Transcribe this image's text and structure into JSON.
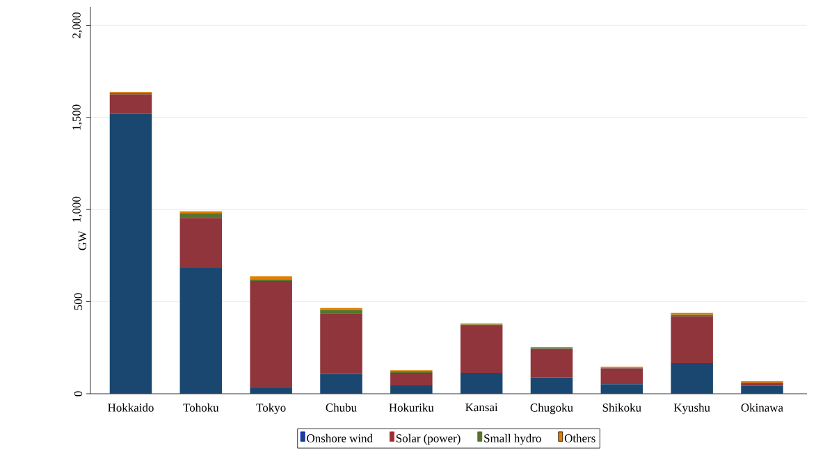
{
  "chart_data": {
    "type": "bar",
    "stacked": true,
    "ylabel": "GW",
    "categories": [
      "Hokkaido",
      "Tohoku",
      "Tokyo",
      "Chubu",
      "Hokuriku",
      "Kansai",
      "Chugoku",
      "Shikoku",
      "Kyushu",
      "Okinawa"
    ],
    "series": [
      {
        "name": "Onshore wind",
        "color": "#1a476f",
        "values": [
          1519,
          684,
          37,
          108,
          45,
          113,
          89,
          52,
          166,
          43
        ]
      },
      {
        "name": "Solar (power)",
        "color": "#90353b",
        "values": [
          107,
          271,
          575,
          329,
          68,
          257,
          155,
          86,
          254,
          16
        ]
      },
      {
        "name": "Small hydro",
        "color": "#55752f",
        "values": [
          7,
          26,
          9,
          18,
          8,
          6,
          4,
          4,
          9,
          0
        ]
      },
      {
        "name": "Others",
        "color": "#e37e00",
        "values": [
          6,
          9,
          16,
          10,
          6,
          5,
          5,
          4,
          10,
          9
        ]
      }
    ],
    "ylim": [
      0,
      2100
    ],
    "yticks": [
      0,
      500,
      {
        "value": 1000,
        "label": "1,000"
      },
      {
        "value": 1500,
        "label": "1,500"
      },
      {
        "value": 2000,
        "label": "2,000"
      }
    ],
    "grid": "y",
    "legend": "bottom"
  }
}
